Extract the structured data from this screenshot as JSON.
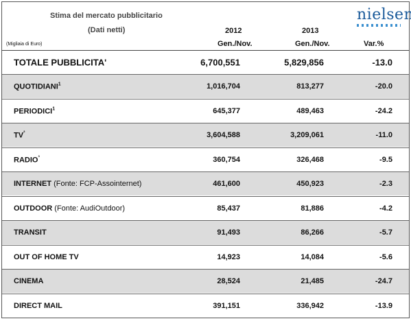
{
  "header": {
    "title": "Stima del mercato pubblicitario",
    "subtitle": "(Dati netti)",
    "unit": "(Migliaia di Euro)",
    "logo": "nielsen",
    "columns": [
      {
        "year": "2012",
        "period": "Gen./Nov."
      },
      {
        "year": "2013",
        "period": "Gen./Nov."
      },
      {
        "label": "Var.%"
      }
    ]
  },
  "total": {
    "name": "TOTALE PUBBLICITA'",
    "v2012": "6,700,551",
    "v2013": "5,829,856",
    "var": "-13.0"
  },
  "rows": [
    {
      "name": "QUOTIDIANI",
      "sup": "1",
      "v2012": "1,016,704",
      "v2013": "813,277",
      "var": "-20.0"
    },
    {
      "name": "PERIODICI",
      "sup": "1",
      "v2012": "645,377",
      "v2013": "489,463",
      "var": "-24.2"
    },
    {
      "name": "TV",
      "sup": "²",
      "v2012": "3,604,588",
      "v2013": "3,209,061",
      "var": "-11.0"
    },
    {
      "name": "RADIO",
      "sup": "³",
      "v2012": "360,754",
      "v2013": "326,468",
      "var": "-9.5"
    },
    {
      "name": "INTERNET",
      "note": "(Fonte: FCP-Assointernet)",
      "v2012": "461,600",
      "v2013": "450,923",
      "var": "-2.3"
    },
    {
      "name": "OUTDOOR",
      "note": "(Fonte: AudiOutdoor)",
      "v2012": "85,437",
      "v2013": "81,886",
      "var": "-4.2"
    },
    {
      "name": "TRANSIT",
      "v2012": "91,493",
      "v2013": "86,266",
      "var": "-5.7"
    },
    {
      "name": "OUT OF HOME TV",
      "v2012": "14,923",
      "v2013": "14,084",
      "var": "-5.6"
    },
    {
      "name": "CINEMA",
      "v2012": "28,524",
      "v2013": "21,485",
      "var": "-24.7"
    },
    {
      "name": "DIRECT MAIL",
      "v2012": "391,151",
      "v2013": "336,942",
      "var": "-13.9"
    }
  ]
}
